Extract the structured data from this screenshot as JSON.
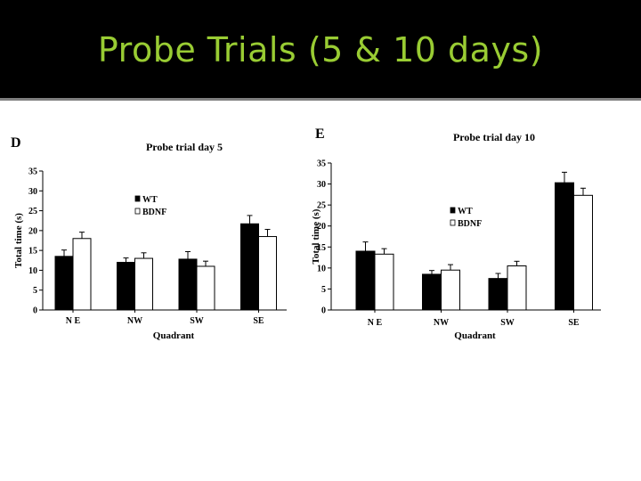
{
  "slide": {
    "title": "Probe Trials (5 & 10 days)",
    "title_color": "#99cc33",
    "title_bar_color": "#000000"
  },
  "chart_data": [
    {
      "panel": "D",
      "type": "bar",
      "title": "Probe trial day 5",
      "xlabel": "Quadrant",
      "ylabel": "Total time (s)",
      "categories": [
        "N E",
        "NW",
        "SW",
        "SE"
      ],
      "yticks": [
        0,
        5,
        10,
        15,
        20,
        25,
        30,
        35
      ],
      "ylim": [
        0,
        35
      ],
      "legend": {
        "position": "upper-left-inside",
        "entries": [
          "WT",
          "BDNF"
        ]
      },
      "series": [
        {
          "name": "WT",
          "color": "#000000",
          "values": [
            13.5,
            12,
            12.8,
            21.7
          ],
          "errors": [
            1.6,
            1.1,
            1.9,
            2.1
          ]
        },
        {
          "name": "BDNF",
          "color": "#ffffff",
          "values": [
            18,
            13,
            11,
            18.5
          ],
          "errors": [
            1.6,
            1.4,
            1.3,
            1.8
          ]
        }
      ]
    },
    {
      "panel": "E",
      "type": "bar",
      "title": "Probe trial day 10",
      "xlabel": "Quadrant",
      "ylabel": "Total time (s)",
      "categories": [
        "N E",
        "NW",
        "SW",
        "SE"
      ],
      "yticks": [
        0,
        5,
        10,
        15,
        20,
        25,
        30,
        35
      ],
      "ylim": [
        0,
        35
      ],
      "legend": {
        "position": "middle-left-inside",
        "entries": [
          "WT",
          "BDNF"
        ]
      },
      "series": [
        {
          "name": "WT",
          "color": "#000000",
          "values": [
            14,
            8.5,
            7.5,
            30.3
          ],
          "errors": [
            2.2,
            0.9,
            1.2,
            2.5
          ]
        },
        {
          "name": "BDNF",
          "color": "#ffffff",
          "values": [
            13.3,
            9.5,
            10.5,
            27.3
          ],
          "errors": [
            1.3,
            1.3,
            1.1,
            1.7
          ]
        }
      ]
    }
  ]
}
